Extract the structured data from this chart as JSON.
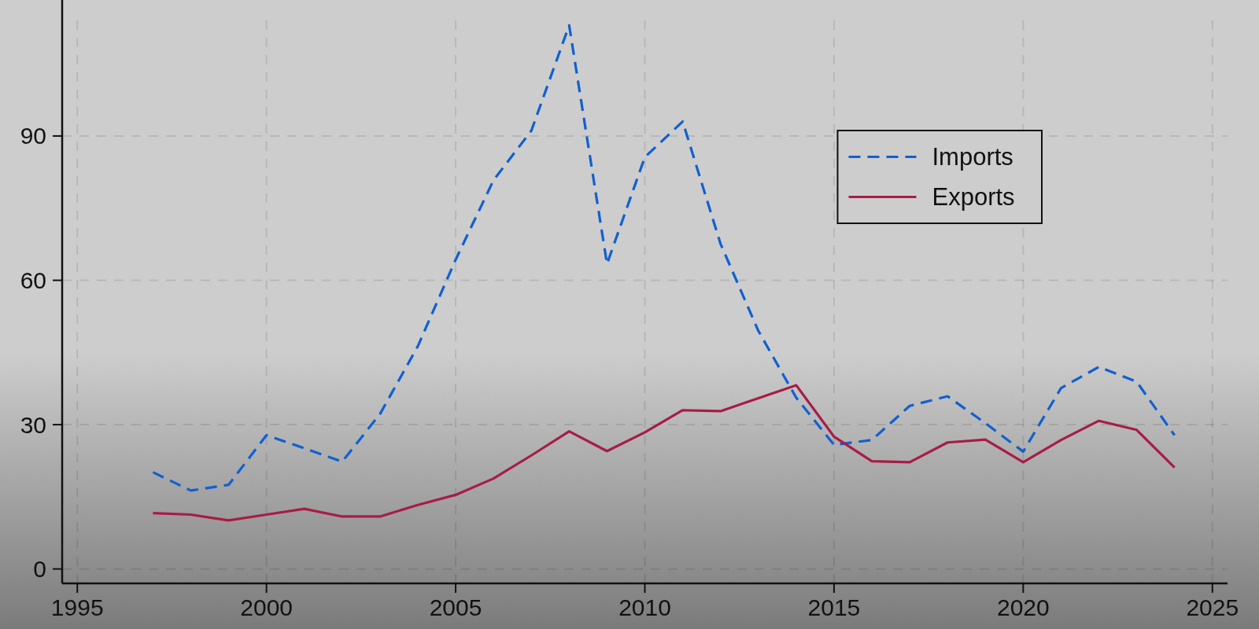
{
  "chart_data": {
    "type": "line",
    "x": [
      1997,
      1998,
      1999,
      2000,
      2001,
      2002,
      2003,
      2004,
      2005,
      2006,
      2007,
      2008,
      2009,
      2010,
      2011,
      2012,
      2013,
      2014,
      2015,
      2016,
      2017,
      2018,
      2019,
      2020,
      2021,
      2022,
      2023,
      2024
    ],
    "series": [
      {
        "name": "Imports",
        "color": "#1060d0",
        "line_style": "dashed",
        "values": [
          20.1,
          16.3,
          17.5,
          27.8,
          25.1,
          22.3,
          32.2,
          46.3,
          64.3,
          80.8,
          91.1,
          113,
          63.4,
          85.6,
          93.0,
          67.6,
          49.5,
          35.6,
          25.8,
          26.8,
          33.9,
          35.9,
          30.3,
          24.4,
          37.6,
          42.0,
          38.9,
          27.8
        ]
      },
      {
        "name": "Exports",
        "color": "#a81c46",
        "line_style": "solid",
        "values": [
          11.6,
          11.3,
          10.1,
          11.3,
          12.5,
          10.9,
          10.9,
          13.3,
          15.4,
          18.8,
          23.6,
          28.6,
          24.5,
          28.4,
          33.0,
          32.8,
          35.5,
          38.2,
          27.5,
          22.4,
          22.2,
          26.3,
          26.9,
          22.2,
          26.8,
          30.8,
          28.9,
          21.1
        ]
      }
    ],
    "xlim": [
      1994.6,
      2025.4
    ],
    "xticks": [
      1995,
      2000,
      2005,
      2010,
      2015,
      2020,
      2025
    ],
    "ylim": [
      -3,
      115
    ],
    "yticks": [
      0,
      30,
      60,
      90
    ],
    "grid": true,
    "legend": "top right"
  }
}
